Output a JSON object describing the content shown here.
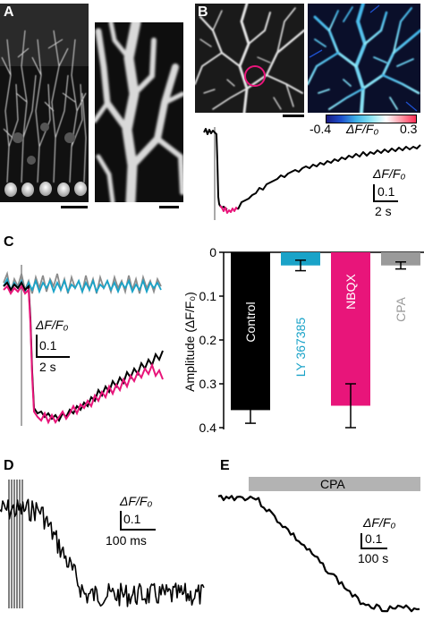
{
  "panels": {
    "a": "A",
    "b": "B",
    "c": "C",
    "d": "D",
    "e": "E"
  },
  "colorbar": {
    "min_label": "-0.4",
    "max_label": "0.3",
    "quantity_label": "ΔF/F₀",
    "colors": [
      "#1a1a80",
      "#1d4fcc",
      "#3fb3e8",
      "#8ee6f5",
      "#ffffff",
      "#ff9aa8",
      "#ff2d55"
    ]
  },
  "scalebars": {
    "b_y": "ΔF/F₀",
    "b_y_value": "0.1",
    "b_x": "2 s",
    "c_y": "ΔF/F₀",
    "c_y_value": "0.1",
    "c_x": "2 s",
    "d_y": "ΔF/F₀",
    "d_y_value": "0.1",
    "d_x": "100 ms",
    "e_y": "ΔF/F₀",
    "e_y_value": "0.1",
    "e_x": "100 s"
  },
  "panel_e": {
    "cpa_label": "CPA",
    "cpa_bar_color": "#b3b3b3"
  },
  "chart_data": {
    "type": "bar",
    "categories": [
      "Control",
      "LY 367385",
      "NBQX",
      "CPA"
    ],
    "values": [
      0.36,
      0.03,
      0.35,
      0.03
    ],
    "errors": [
      0.03,
      0.012,
      0.05,
      0.008
    ],
    "colors": [
      "#000000",
      "#1aa3c8",
      "#e8157a",
      "#9a9a9a"
    ],
    "category_label_colors": [
      "#ffffff",
      "#1aa3c8",
      "#ffffff",
      "#9a9a9a"
    ],
    "ylabel": "Amplitude (ΔF/F₀)",
    "ylim": [
      0,
      0.4
    ],
    "yticks": [
      "0",
      "0.1",
      "0.2",
      "0.3",
      "0.4"
    ],
    "y_inverted": true
  },
  "colors": {
    "magenta": "#e8157a",
    "cyan": "#1aa3c8",
    "gray": "#8c8c8c"
  }
}
